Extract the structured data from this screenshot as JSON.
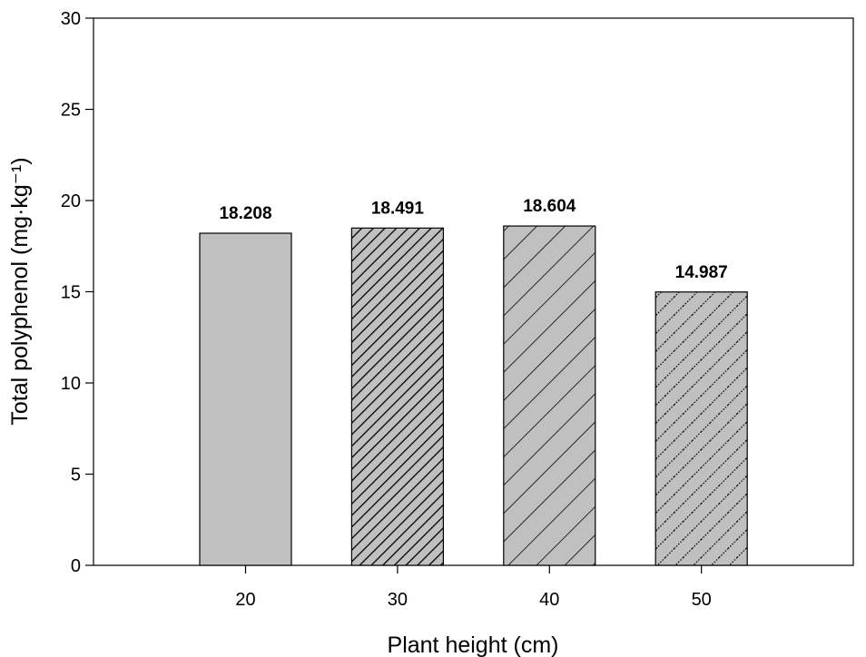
{
  "chart_data": {
    "type": "bar",
    "title": "",
    "xlabel": "Plant height (cm)",
    "ylabel": "Total polyphenol (mg·kg⁻¹)",
    "ylim": [
      0,
      30
    ],
    "yticks": [
      0,
      5,
      10,
      15,
      20,
      25,
      30
    ],
    "categories": [
      "20",
      "30",
      "40",
      "50"
    ],
    "values": [
      18.208,
      18.491,
      18.604,
      14.987
    ],
    "data_labels": [
      "18.208",
      "18.491",
      "18.604",
      "14.987"
    ],
    "bar_fill": "#c0c0c0",
    "bar_patterns": [
      "solid",
      "dense-diagonal-hatch",
      "wide-diagonal-hatch",
      "dotted-diagonal-hatch"
    ],
    "grid": false,
    "legend": "none"
  }
}
